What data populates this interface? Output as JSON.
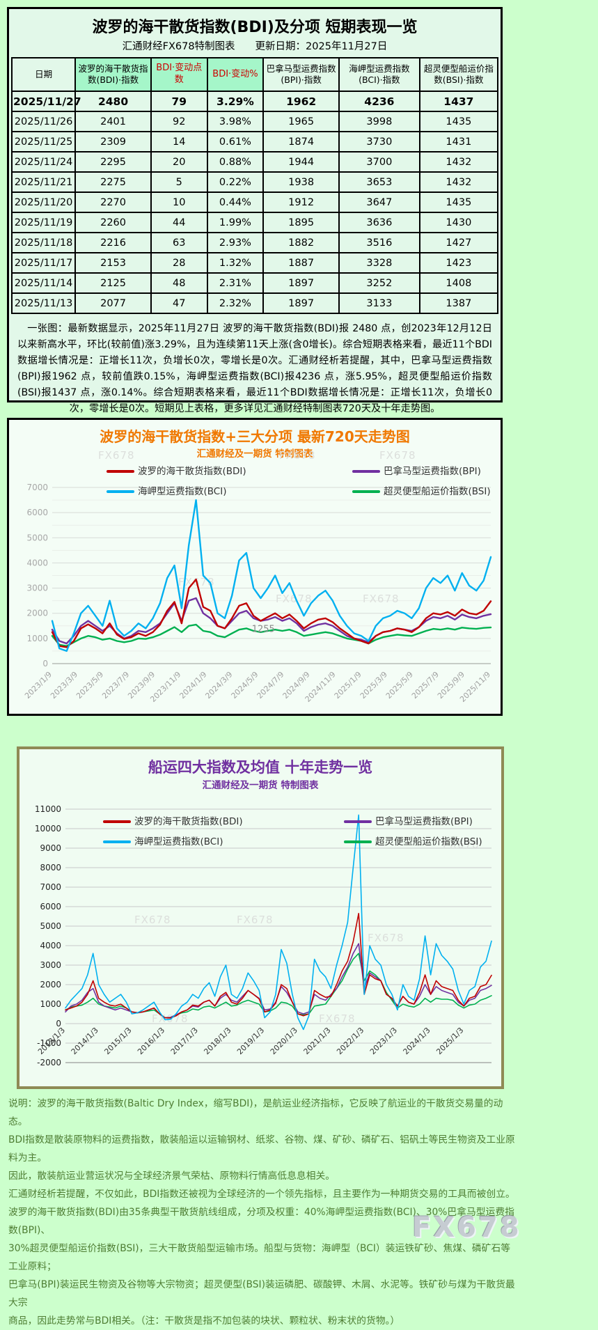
{
  "page": {
    "watermark": "FX678"
  },
  "report": {
    "title": "波罗的海干散货指数(BDI)及分项 短期表现一览",
    "subtitle": "汇通财经FX678特制图表　　更新日期：2025年11月27日",
    "table": {
      "headers": [
        "日期",
        "波罗的海干散货指数(BDI)·指数",
        "BDI·变动点数",
        "BDI·变动%",
        "巴拿马型运费指数(BPI)·指数",
        "海岬型运费指数(BCI)·指数",
        "超灵便型船运价指数(BSI)·指数"
      ],
      "rows": [
        [
          "2025/11/27",
          "2480",
          "79",
          "3.29%",
          "1962",
          "4236",
          "1437"
        ],
        [
          "2025/11/26",
          "2401",
          "92",
          "3.98%",
          "1965",
          "3998",
          "1435"
        ],
        [
          "2025/11/25",
          "2309",
          "14",
          "0.61%",
          "1874",
          "3730",
          "1431"
        ],
        [
          "2025/11/24",
          "2295",
          "20",
          "0.88%",
          "1944",
          "3700",
          "1432"
        ],
        [
          "2025/11/21",
          "2275",
          "5",
          "0.22%",
          "1938",
          "3653",
          "1432"
        ],
        [
          "2025/11/20",
          "2270",
          "10",
          "0.44%",
          "1912",
          "3647",
          "1435"
        ],
        [
          "2025/11/19",
          "2260",
          "44",
          "1.99%",
          "1895",
          "3636",
          "1430"
        ],
        [
          "2025/11/18",
          "2216",
          "63",
          "2.93%",
          "1882",
          "3516",
          "1427"
        ],
        [
          "2025/11/17",
          "2153",
          "28",
          "1.32%",
          "1887",
          "3328",
          "1423"
        ],
        [
          "2025/11/14",
          "2125",
          "48",
          "2.31%",
          "1897",
          "3252",
          "1408"
        ],
        [
          "2025/11/13",
          "2077",
          "47",
          "2.32%",
          "1897",
          "3133",
          "1387"
        ]
      ]
    },
    "summary": "一张图：最新数据显示，2025年11月27日 波罗的海干散货指数(BDI)报 2480 点，创2023年12月12日以来新高水平，环比(较前值)涨3.29%，且为连续第11天上涨(含0增长)。综合短期表格来看，最近11个BDI数据增长情况是：正增长11次，负增长0次，零增长是0次。汇通财经析若提醒，其中，巴拿马型运费指数(BPI)报1962 点，较前值跌0.15%，海岬型运费指数(BCI)报4236 点，涨5.95%，超灵便型船运价指数(BSI)报1437 点，涨0.14%。综合短期表格来看，最近11个BDI数据增长情况是：正增长11次，负增长0次，零增长是0次。短期见上表格，更多详见汇通财经特制图表720天及十年走势图。"
  },
  "chart_data": [
    {
      "type": "line",
      "title": "波罗的海干散货指数+三大分项  最新720天走势图",
      "subtitle": "汇通财经及一期货  特制图表",
      "title_color": "#f07800",
      "ylim": [
        0,
        7000
      ],
      "ystep": 1000,
      "grid": true,
      "legend_position": "top",
      "xlabels": [
        "2023/1/9",
        "2023/3/9",
        "2023/5/9",
        "2023/7/9",
        "2023/9/9",
        "2023/11/9",
        "2024/1/9",
        "2024/3/9",
        "2024/5/9",
        "2024/7/9",
        "2024/9/9",
        "2024/11/9",
        "2025/1/9",
        "2025/3/9",
        "2025/5/9",
        "2025/7/9",
        "2025/9/9",
        "2025/11/9"
      ],
      "series": [
        {
          "name": "波罗的海干散货指数(BDI)",
          "color": "#c00000",
          "values": [
            1250,
            700,
            650,
            900,
            1400,
            1560,
            1400,
            1200,
            1600,
            1150,
            980,
            1050,
            1200,
            1100,
            1250,
            1550,
            2100,
            2450,
            1600,
            3000,
            3346,
            2250,
            2100,
            1500,
            1400,
            1800,
            2300,
            2400,
            1900,
            1700,
            1850,
            2000,
            1800,
            1950,
            1700,
            1400,
            1600,
            1750,
            1800,
            1650,
            1400,
            1200,
            1000,
            900,
            800,
            1100,
            1250,
            1300,
            1400,
            1350,
            1250,
            1450,
            1800,
            2000,
            1950,
            2050,
            1900,
            2150,
            2000,
            1950,
            2100,
            2480
          ]
        },
        {
          "name": "巴拿马型运费指数(BPI)",
          "color": "#7030a0",
          "values": [
            1350,
            900,
            800,
            1100,
            1500,
            1700,
            1500,
            1300,
            1500,
            1200,
            1000,
            1100,
            1300,
            1250,
            1400,
            1600,
            2000,
            2400,
            1700,
            2500,
            2600,
            2000,
            1800,
            1500,
            1400,
            1700,
            2000,
            2100,
            1800,
            1700,
            1750,
            1850,
            1700,
            1800,
            1600,
            1300,
            1450,
            1550,
            1600,
            1500,
            1300,
            1100,
            1000,
            950,
            850,
            1100,
            1250,
            1300,
            1400,
            1350,
            1300,
            1450,
            1700,
            1850,
            1800,
            1900,
            1750,
            1950,
            1850,
            1800,
            1900,
            1962
          ]
        },
        {
          "name": "海岬型运费指数(BCI)",
          "color": "#00b0f0",
          "values": [
            1700,
            600,
            500,
            1200,
            2000,
            2300,
            1900,
            1500,
            2500,
            1400,
            1100,
            1300,
            1600,
            1400,
            1800,
            2400,
            3400,
            3900,
            2200,
            4700,
            6500,
            3500,
            3200,
            2000,
            1800,
            2700,
            4100,
            4400,
            3000,
            2600,
            3000,
            3500,
            2800,
            3200,
            2500,
            1900,
            2400,
            2700,
            2900,
            2500,
            1900,
            1500,
            1200,
            1100,
            900,
            1500,
            1800,
            1900,
            2100,
            2000,
            1800,
            2200,
            3000,
            3400,
            3200,
            3500,
            2900,
            3600,
            3100,
            2900,
            3300,
            4236
          ]
        },
        {
          "name": "超灵便型船运价指数(BSI)",
          "color": "#00b050",
          "values": [
            1100,
            750,
            700,
            850,
            1000,
            1100,
            1050,
            950,
            1000,
            900,
            850,
            900,
            1000,
            980,
            1050,
            1150,
            1300,
            1450,
            1250,
            1500,
            1550,
            1300,
            1250,
            1100,
            1050,
            1200,
            1350,
            1400,
            1300,
            1250,
            1300,
            1350,
            1300,
            1350,
            1250,
            1100,
            1150,
            1200,
            1250,
            1200,
            1100,
            1000,
            950,
            900,
            800,
            950,
            1050,
            1100,
            1150,
            1120,
            1100,
            1200,
            1300,
            1380,
            1350,
            1400,
            1350,
            1430,
            1400,
            1380,
            1420,
            1437
          ]
        }
      ],
      "annotations": [
        {
          "label": "1255",
          "x_frac": 0.455,
          "y_value": 1255
        }
      ]
    },
    {
      "type": "line",
      "title": "船运四大指数及均值 十年走势一览",
      "subtitle": "汇通财经及一期货 特制图表",
      "title_color": "#7030a0",
      "ylim": [
        -2000,
        11000
      ],
      "ystep": 1000,
      "grid": true,
      "legend_position": "top",
      "xlabels": [
        "2013/1/3",
        "2014/1/3",
        "2015/1/3",
        "2016/1/3",
        "2017/1/3",
        "2018/1/3",
        "2019/1/3",
        "2020/1/3",
        "2021/1/3",
        "2022/1/3",
        "2023/1/3",
        "2024/1/3",
        "2025/1/3"
      ],
      "series": [
        {
          "name": "波罗的海干散货指数(BDI)",
          "color": "#c00000",
          "values": [
            700,
            800,
            900,
            1100,
            1500,
            2200,
            1300,
            1100,
            950,
            900,
            1000,
            800,
            600,
            560,
            600,
            700,
            800,
            500,
            300,
            290,
            400,
            600,
            700,
            950,
            900,
            1100,
            1200,
            900,
            1400,
            1600,
            1100,
            1000,
            1300,
            1700,
            1500,
            1270,
            600,
            700,
            1050,
            2000,
            1800,
            1100,
            500,
            400,
            500,
            1700,
            1500,
            1350,
            1400,
            2000,
            2700,
            3200,
            4200,
            5650,
            1500,
            2500,
            2300,
            2200,
            1500,
            1300,
            900,
            1400,
            1100,
            1000,
            1600,
            2500,
            1500,
            2200,
            1900,
            1800,
            1700,
            1200,
            900,
            1300,
            1400,
            1900,
            2000,
            2480
          ]
        },
        {
          "name": "巴拿马型运费指数(BPI)",
          "color": "#7030a0",
          "values": [
            600,
            900,
            1000,
            1200,
            1600,
            1800,
            1100,
            900,
            800,
            700,
            800,
            700,
            600,
            550,
            600,
            700,
            800,
            500,
            300,
            320,
            450,
            600,
            700,
            900,
            850,
            1100,
            1200,
            900,
            1300,
            1500,
            1200,
            1100,
            1400,
            1700,
            1500,
            1300,
            700,
            750,
            1100,
            1900,
            1600,
            1100,
            600,
            500,
            600,
            1500,
            1300,
            1200,
            1500,
            1800,
            2400,
            2900,
            3600,
            4100,
            1800,
            2600,
            2400,
            2200,
            1500,
            1300,
            900,
            1400,
            1100,
            1000,
            1400,
            2000,
            1500,
            1900,
            1700,
            1600,
            1500,
            1100,
            900,
            1200,
            1300,
            1700,
            1800,
            1962
          ]
        },
        {
          "name": "海岬型运费指数(BCI)",
          "color": "#00b0f0",
          "values": [
            800,
            1200,
            1500,
            1800,
            2500,
            3600,
            2000,
            1500,
            1100,
            1300,
            1500,
            1100,
            500,
            550,
            700,
            900,
            1100,
            600,
            200,
            220,
            500,
            900,
            1100,
            1500,
            1300,
            1800,
            2100,
            1400,
            2400,
            3000,
            1500,
            1300,
            1800,
            2600,
            2200,
            1700,
            300,
            600,
            1500,
            3800,
            3100,
            1500,
            300,
            -300,
            400,
            3300,
            2700,
            2400,
            1800,
            3000,
            4000,
            5200,
            8000,
            10700,
            1500,
            4000,
            3300,
            3000,
            2000,
            1500,
            700,
            2000,
            1400,
            1200,
            2300,
            4500,
            2500,
            4100,
            3500,
            3200,
            2800,
            1700,
            1000,
            1700,
            1900,
            2900,
            3200,
            4236
          ]
        },
        {
          "name": "超灵便型船运价指数(BSI)",
          "color": "#00b050",
          "values": [
            700,
            850,
            900,
            950,
            1100,
            1300,
            1000,
            900,
            850,
            800,
            900,
            800,
            600,
            550,
            600,
            650,
            700,
            500,
            300,
            320,
            450,
            550,
            600,
            750,
            700,
            850,
            900,
            800,
            950,
            1100,
            900,
            950,
            1100,
            1200,
            1100,
            1000,
            600,
            650,
            800,
            1100,
            1050,
            900,
            500,
            450,
            500,
            900,
            950,
            1000,
            1400,
            1800,
            2200,
            2800,
            3300,
            3600,
            2200,
            2700,
            2500,
            2200,
            1600,
            1200,
            800,
            1000,
            900,
            850,
            1000,
            1300,
            1100,
            1300,
            1250,
            1250,
            1200,
            950,
            800,
            950,
            1000,
            1200,
            1300,
            1437
          ]
        }
      ],
      "annotations": []
    }
  ],
  "explanation": {
    "lines": [
      "说明：波罗的海干散货指数(Baltic Dry Index，缩写BDI)，是航运业经济指标，它反映了航运业的干散货交易量的动态。",
      "BDI指数是散装原物料的运费指数，散装船运以运输钢材、纸浆、谷物、煤、矿砂、磷矿石、铝矾土等民生物资及工业原料为主。",
      "因此，散装航运业营运状况与全球经济景气荣枯、原物料行情高低息息相关。",
      "汇通财经析若提醒，不仅如此，BDI指数还被视为全球经济的一个领先指标，且主要作为一种期货交易的工具而被创立。",
      "波罗的海干散货指数(BDI)由35条典型干散货航线组成，分项及权重：40%海岬型运费指数(BCI)、30%巴拿马型运费指数(BPI)、",
      "30%超灵便型船运价指数(BSI)，三大干散货船型运输市场。船型与货物：海岬型（BCI）装运铁矿砂、焦煤、磷矿石等工业原料；",
      "巴拿马(BPI)装运民生物资及谷物等大宗物资；超灵便型(BSI)装运磷肥、碳酸钾、木屑、水泥等。铁矿砂与煤为干散货最大宗",
      "商品，因此走势常与BDI相关。（注：干散货是指不加包装的块状、颗粒状、粉末状的货物。）"
    ]
  }
}
